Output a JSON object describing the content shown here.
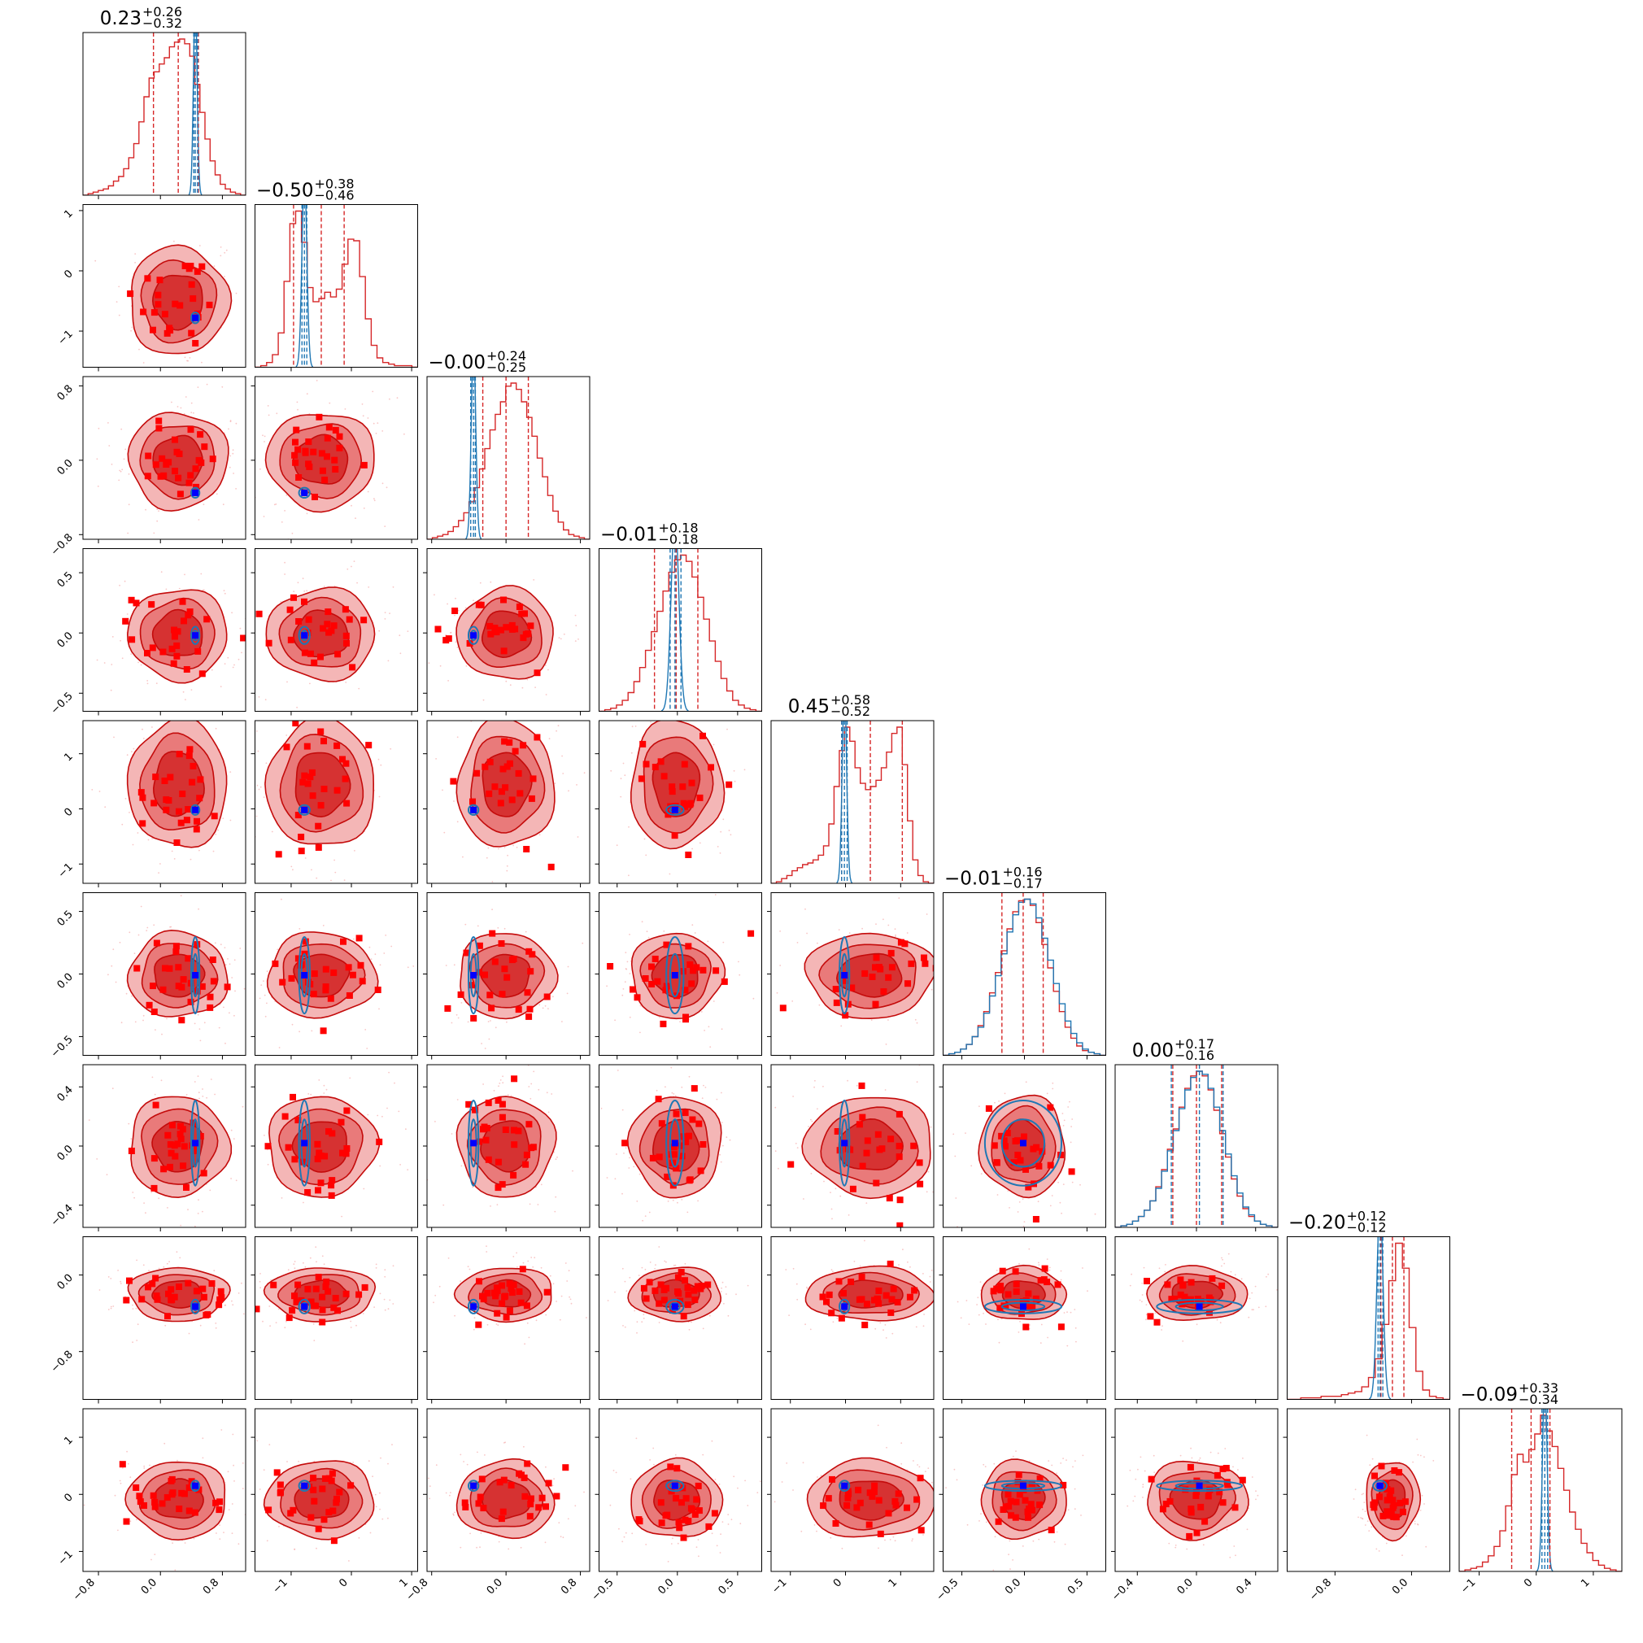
{
  "colors": {
    "posterior": "#d62728",
    "posterior_dark": "#c40b0b",
    "reference": "#1f77b4",
    "marker_red": "#ff0000",
    "marker_blue": "#0000ff",
    "frame": "#000000"
  },
  "chart_data": {
    "type": "corner",
    "n_params": 9,
    "title": "",
    "xlabel": "",
    "ylabel": "",
    "grid": false,
    "titles": [
      {
        "value": "0.23",
        "plus": "+0.26",
        "minus": "−0.32"
      },
      {
        "value": "−0.50",
        "plus": "+0.38",
        "minus": "−0.46"
      },
      {
        "value": "−0.00",
        "plus": "+0.24",
        "minus": "−0.25"
      },
      {
        "value": "−0.01",
        "plus": "+0.18",
        "minus": "−0.18"
      },
      {
        "value": "0.45",
        "plus": "+0.58",
        "minus": "−0.52"
      },
      {
        "value": "−0.01",
        "plus": "+0.16",
        "minus": "−0.17"
      },
      {
        "value": "0.00",
        "plus": "+0.17",
        "minus": "−0.16"
      },
      {
        "value": "−0.20",
        "plus": "+0.12",
        "minus": "−0.12"
      },
      {
        "value": "−0.09",
        "plus": "+0.33",
        "minus": "−0.34"
      }
    ],
    "ranges": [
      [
        -1.0,
        1.1
      ],
      [
        -1.6,
        1.1
      ],
      [
        -0.85,
        0.9
      ],
      [
        -0.65,
        0.7
      ],
      [
        -1.35,
        1.6
      ],
      [
        -0.65,
        0.65
      ],
      [
        -0.55,
        0.55
      ],
      [
        -1.3,
        0.4
      ],
      [
        -1.35,
        1.5
      ]
    ],
    "axis_ticks": [
      {
        "values": [
          -0.8,
          0.0,
          0.8
        ],
        "labels": [
          "−0.8",
          "0.0",
          "0.8"
        ]
      },
      {
        "values": [
          -1,
          0,
          1
        ],
        "labels": [
          "−1",
          "0",
          "1"
        ]
      },
      {
        "values": [
          -0.8,
          0.0,
          0.8
        ],
        "labels": [
          "−0.8",
          "0.0",
          "0.8"
        ]
      },
      {
        "values": [
          -0.5,
          0.0,
          0.5
        ],
        "labels": [
          "−0.5",
          "0.0",
          "0.5"
        ]
      },
      {
        "values": [
          -1,
          0,
          1
        ],
        "labels": [
          "−1",
          "0",
          "1"
        ]
      },
      {
        "values": [
          -0.5,
          0.0,
          0.5
        ],
        "labels": [
          "−0.5",
          "0.0",
          "0.5"
        ]
      },
      {
        "values": [
          -0.4,
          0.0,
          0.4
        ],
        "labels": [
          "−0.4",
          "0.0",
          "0.4"
        ]
      },
      {
        "values": [
          -0.8,
          0.0
        ],
        "labels": [
          "−0.8",
          "0.0"
        ]
      },
      {
        "values": [
          -1,
          0,
          1
        ],
        "labels": [
          "−1",
          "0",
          "1"
        ]
      }
    ],
    "posterior": {
      "median": [
        0.23,
        -0.5,
        0.0,
        -0.01,
        0.45,
        -0.01,
        0.0,
        -0.2,
        -0.09
      ],
      "q16": [
        -0.09,
        -0.96,
        -0.25,
        -0.19,
        -0.07,
        -0.18,
        -0.16,
        -0.32,
        -0.43
      ],
      "q84": [
        0.49,
        -0.12,
        0.24,
        0.17,
        1.03,
        0.15,
        0.17,
        -0.08,
        0.24
      ],
      "sigma": [
        0.32,
        0.45,
        0.26,
        0.19,
        0.58,
        0.17,
        0.17,
        0.14,
        0.34
      ]
    },
    "reference": {
      "median": [
        0.45,
        -0.78,
        -0.35,
        -0.02,
        -0.02,
        null,
        0.02,
        -0.33,
        0.15
      ],
      "q16": [
        0.43,
        -0.82,
        -0.38,
        -0.06,
        -0.07,
        null,
        -0.17,
        -0.35,
        0.1
      ],
      "q84": [
        0.48,
        -0.74,
        -0.33,
        0.03,
        0.03,
        null,
        0.18,
        -0.3,
        0.2
      ],
      "sigma": [
        0.03,
        0.05,
        0.03,
        0.04,
        0.05,
        null,
        0.16,
        0.04,
        0.05
      ]
    },
    "histograms": {
      "posterior": [
        [
          0,
          1,
          2,
          3,
          4,
          6,
          9,
          12,
          17,
          24,
          33,
          47,
          63,
          75,
          79,
          84,
          88,
          95,
          98,
          100,
          97,
          89,
          71,
          53,
          36,
          22,
          13,
          7,
          4,
          2,
          1,
          0
        ],
        [
          0,
          1,
          3,
          8,
          22,
          55,
          92,
          100,
          80,
          51,
          42,
          44,
          48,
          45,
          50,
          66,
          82,
          81,
          58,
          31,
          14,
          6,
          3,
          2,
          1,
          1,
          1,
          0
        ],
        [
          0,
          1,
          2,
          3,
          5,
          8,
          12,
          17,
          24,
          33,
          45,
          58,
          70,
          80,
          88,
          98,
          100,
          96,
          88,
          78,
          66,
          52,
          40,
          28,
          18,
          11,
          6,
          3,
          2,
          1,
          0
        ],
        [
          0,
          1,
          2,
          4,
          7,
          12,
          19,
          28,
          39,
          51,
          64,
          77,
          89,
          97,
          100,
          96,
          86,
          73,
          59,
          45,
          32,
          21,
          13,
          7,
          4,
          2,
          1,
          0
        ],
        [
          0,
          1,
          3,
          5,
          8,
          10,
          12,
          13,
          15,
          18,
          24,
          38,
          62,
          85,
          100,
          91,
          74,
          64,
          60,
          62,
          66,
          74,
          84,
          96,
          100,
          76,
          40,
          15,
          5,
          1,
          0
        ],
        [
          0,
          1,
          2,
          4,
          7,
          12,
          19,
          28,
          40,
          53,
          67,
          81,
          92,
          99,
          100,
          96,
          85,
          71,
          56,
          41,
          28,
          18,
          11,
          6,
          3,
          2,
          1,
          0
        ],
        [
          0,
          1,
          2,
          4,
          7,
          11,
          17,
          26,
          37,
          50,
          63,
          77,
          89,
          97,
          100,
          97,
          88,
          75,
          60,
          45,
          31,
          20,
          12,
          7,
          4,
          2,
          1,
          0
        ],
        [
          0,
          0,
          1,
          1,
          1,
          2,
          2,
          2,
          3,
          4,
          5,
          8,
          14,
          26,
          48,
          76,
          100,
          84,
          46,
          18,
          6,
          2,
          1,
          0
        ],
        [
          0,
          1,
          2,
          3,
          6,
          10,
          16,
          26,
          42,
          62,
          75,
          70,
          78,
          88,
          100,
          90,
          80,
          66,
          52,
          38,
          27,
          18,
          12,
          7,
          4,
          2,
          1,
          0
        ]
      ],
      "reference": [
        [
          null
        ],
        [
          null
        ],
        [
          null
        ],
        [
          null
        ],
        [
          null
        ],
        [
          0,
          1,
          2,
          4,
          7,
          12,
          18,
          27,
          38,
          51,
          65,
          79,
          90,
          98,
          100,
          97,
          88,
          75,
          61,
          46,
          33,
          22,
          14,
          8,
          4,
          2,
          1,
          0
        ],
        [
          0,
          1,
          2,
          4,
          7,
          11,
          17,
          25,
          36,
          49,
          62,
          76,
          88,
          96,
          100,
          98,
          89,
          77,
          62,
          47,
          33,
          22,
          13,
          8,
          4,
          2,
          1,
          0
        ],
        [
          null
        ],
        [
          null
        ]
      ]
    }
  }
}
